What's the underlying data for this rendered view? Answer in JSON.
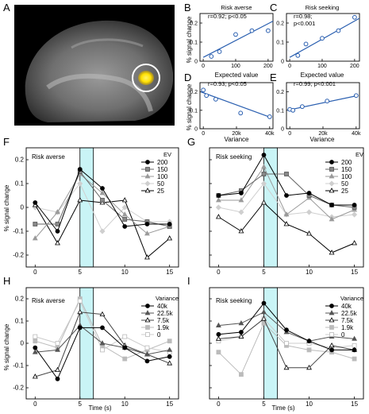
{
  "figure": {
    "panels": {
      "A": {
        "letter": "A"
      },
      "B": {
        "letter": "B",
        "title": "Risk averse",
        "stat": "r=0.92; p<0.05"
      },
      "C": {
        "letter": "C",
        "title": "Risk seeking",
        "stat1": "r=0.98;",
        "stat2": "p<0.001"
      },
      "D": {
        "letter": "D",
        "stat": "r=0.93; p<0.05"
      },
      "E": {
        "letter": "E",
        "stat": "r=0.99; p<0.001"
      },
      "F": {
        "letter": "F",
        "title": "Risk averse"
      },
      "G": {
        "letter": "G",
        "title": "Risk seeking"
      },
      "H": {
        "letter": "H",
        "title": "Risk averse"
      },
      "I": {
        "letter": "I",
        "title": "Risk seeking"
      }
    },
    "colors": {
      "fit_line": "#2a5fb0",
      "marker_blue": "#2a5fb0",
      "highlight": "#c9f4f6",
      "brain_spot": "#ffe000",
      "roi_circle": "#ffffff"
    },
    "labels": {
      "y_signal": "% signal change",
      "x_expected": "Expected value",
      "x_variance": "Variance",
      "x_time": "Time (s)",
      "legend_ev": "EV",
      "legend_variance": "Variance"
    }
  },
  "chart_data": [
    {
      "id": "B",
      "type": "scatter",
      "title": "Risk averse",
      "xlabel": "",
      "ylabel": "% signal change",
      "xlim": [
        -10,
        215
      ],
      "ylim": [
        0,
        0.25
      ],
      "xticks": [
        "0",
        "100",
        "200"
      ],
      "yticks": [
        "0",
        "0.1",
        "0.2"
      ],
      "x": [
        25,
        50,
        100,
        150,
        200
      ],
      "y": [
        0.025,
        0.05,
        0.14,
        0.16,
        0.16
      ],
      "fit": [
        [
          0,
          0.02
        ],
        [
          215,
          0.21
        ]
      ]
    },
    {
      "id": "C",
      "type": "scatter",
      "title": "Risk seeking",
      "xlabel": "",
      "ylabel": "",
      "xlim": [
        -10,
        215
      ],
      "ylim": [
        0,
        0.25
      ],
      "xticks": [
        "0",
        "100",
        "200"
      ],
      "yticks": [
        "0",
        "0.1",
        "0.2"
      ],
      "x": [
        25,
        50,
        100,
        150,
        200
      ],
      "y": [
        0.03,
        0.09,
        0.12,
        0.16,
        0.23
      ],
      "fit": [
        [
          0,
          0.02
        ],
        [
          215,
          0.225
        ]
      ]
    },
    {
      "id": "D",
      "type": "scatter",
      "xlabel": "Variance",
      "ylabel": "% signal change",
      "xlim": [
        -2000,
        42000
      ],
      "ylim": [
        0,
        0.25
      ],
      "xticks": [
        "0",
        "20k",
        "40k"
      ],
      "yticks": [
        "0",
        "0.1",
        "0.2"
      ],
      "x": [
        0,
        1900,
        7500,
        22500,
        40000
      ],
      "y": [
        0.21,
        0.18,
        0.16,
        0.085,
        0.065
      ],
      "fit": [
        [
          -1500,
          0.2
        ],
        [
          41000,
          0.06
        ]
      ]
    },
    {
      "id": "E",
      "type": "scatter",
      "xlabel": "Variance",
      "ylabel": "",
      "xlim": [
        -2000,
        42000
      ],
      "ylim": [
        0,
        0.25
      ],
      "xticks": [
        "0",
        "20k",
        "40k"
      ],
      "yticks": [
        "0",
        "0.1",
        "0.2"
      ],
      "x": [
        0,
        1900,
        7500,
        22500,
        40000
      ],
      "y": [
        0.105,
        0.1,
        0.12,
        0.15,
        0.18
      ],
      "fit": [
        [
          -1500,
          0.1
        ],
        [
          41000,
          0.18
        ]
      ]
    },
    {
      "id": "F",
      "type": "line",
      "title": "Risk averse",
      "ylabel": "% signal change",
      "xlim": [
        -1,
        16
      ],
      "ylim": [
        -0.25,
        0.25
      ],
      "xticks": [
        "0",
        "5",
        "10",
        "15"
      ],
      "yticks": [
        "-0.2",
        "-0.1",
        "0",
        "0.1",
        "0.2"
      ],
      "highlight": [
        5,
        6.5
      ],
      "x": [
        0,
        2.5,
        5,
        7.5,
        10,
        12.5,
        15
      ],
      "legend_title": "EV",
      "series": [
        {
          "name": "200",
          "values": [
            0.02,
            -0.1,
            0.16,
            0.08,
            -0.08,
            -0.07,
            -0.07
          ]
        },
        {
          "name": "150",
          "values": [
            -0.07,
            -0.07,
            0.15,
            0.03,
            -0.05,
            -0.06,
            -0.08
          ]
        },
        {
          "name": "100",
          "values": [
            -0.13,
            -0.02,
            0.14,
            0.06,
            -0.03,
            -0.11,
            -0.08
          ]
        },
        {
          "name": "50",
          "values": [
            0.0,
            -0.02,
            0.1,
            -0.1,
            0.0,
            -0.06,
            -0.06
          ]
        },
        {
          "name": "25",
          "values": [
            0.01,
            -0.15,
            0.03,
            0.02,
            0.03,
            -0.21,
            -0.13
          ]
        }
      ]
    },
    {
      "id": "G",
      "type": "line",
      "title": "Risk seeking",
      "ylabel": "",
      "xlim": [
        -1,
        16
      ],
      "ylim": [
        -0.25,
        0.25
      ],
      "xticks": [
        "0",
        "5",
        "10",
        "15"
      ],
      "yticks": [
        "-0.2",
        "-0.1",
        "0",
        "0.1",
        "0.2"
      ],
      "highlight": [
        5,
        6.5
      ],
      "x": [
        0,
        2.5,
        5,
        7.5,
        10,
        12.5,
        15
      ],
      "legend_title": "EV",
      "series": [
        {
          "name": "200",
          "values": [
            0.05,
            0.06,
            0.22,
            0.05,
            0.06,
            0.01,
            0.01
          ]
        },
        {
          "name": "150",
          "values": [
            0.05,
            0.07,
            0.14,
            0.14,
            0.05,
            0.01,
            0.0
          ]
        },
        {
          "name": "100",
          "values": [
            0.03,
            0.03,
            0.17,
            -0.03,
            0.04,
            -0.05,
            -0.01
          ]
        },
        {
          "name": "50",
          "values": [
            0.0,
            -0.02,
            0.1,
            -0.03,
            -0.02,
            -0.04,
            -0.03
          ]
        },
        {
          "name": "25",
          "values": [
            -0.04,
            -0.1,
            0.02,
            -0.07,
            -0.11,
            -0.19,
            -0.15
          ]
        }
      ]
    },
    {
      "id": "H",
      "type": "line",
      "title": "Risk averse",
      "xlabel": "Time (s)",
      "ylabel": "% signal change",
      "xlim": [
        -1,
        16
      ],
      "ylim": [
        -0.25,
        0.25
      ],
      "xticks": [
        "0",
        "5",
        "10",
        "15"
      ],
      "yticks": [
        "-0.2",
        "-0.1",
        "0",
        "0.1",
        "0.2"
      ],
      "highlight": [
        5,
        6.5
      ],
      "x": [
        0,
        2.5,
        5,
        7.5,
        10,
        12.5,
        15
      ],
      "legend_title": "Variance",
      "series": [
        {
          "name": "40k",
          "values": [
            -0.02,
            -0.16,
            0.07,
            0.07,
            -0.02,
            -0.08,
            -0.06
          ]
        },
        {
          "name": "22.5k",
          "values": [
            -0.04,
            -0.03,
            0.08,
            0.0,
            -0.02,
            -0.05,
            -0.03
          ]
        },
        {
          "name": "7.5k",
          "values": [
            -0.15,
            -0.12,
            0.14,
            0.13,
            -0.01,
            -0.05,
            -0.09
          ]
        },
        {
          "name": "1.9k",
          "values": [
            0.01,
            -0.02,
            0.2,
            -0.01,
            -0.07,
            -0.03,
            0.01
          ]
        },
        {
          "name": "0",
          "values": [
            0.03,
            0.0,
            0.19,
            -0.03,
            0.03,
            -0.02,
            -0.04
          ]
        }
      ]
    },
    {
      "id": "I",
      "type": "line",
      "title": "Risk seeking",
      "xlabel": "Time (s)",
      "ylabel": "",
      "xlim": [
        -1,
        16
      ],
      "ylim": [
        -0.25,
        0.25
      ],
      "xticks": [
        "0",
        "5",
        "10",
        "15"
      ],
      "yticks": [
        "-0.2",
        "-0.1",
        "0",
        "0.1",
        "0.2"
      ],
      "highlight": [
        5,
        6.5
      ],
      "x": [
        0,
        2.5,
        5,
        7.5,
        10,
        12.5,
        15
      ],
      "legend_title": "Variance",
      "series": [
        {
          "name": "40k",
          "values": [
            0.04,
            0.05,
            0.18,
            0.06,
            0.01,
            -0.03,
            -0.03
          ]
        },
        {
          "name": "22.5k",
          "values": [
            0.08,
            0.09,
            0.14,
            0.05,
            0.01,
            0.03,
            0.02
          ]
        },
        {
          "name": "7.5k",
          "values": [
            0.02,
            0.03,
            0.11,
            -0.11,
            -0.11,
            -0.01,
            -0.03
          ]
        },
        {
          "name": "1.9k",
          "values": [
            -0.04,
            -0.14,
            0.09,
            -0.01,
            -0.03,
            -0.04,
            -0.07
          ]
        },
        {
          "name": "0",
          "values": [
            0.01,
            0.03,
            0.11,
            0.0,
            0.0,
            -0.02,
            -0.01
          ]
        }
      ]
    }
  ]
}
